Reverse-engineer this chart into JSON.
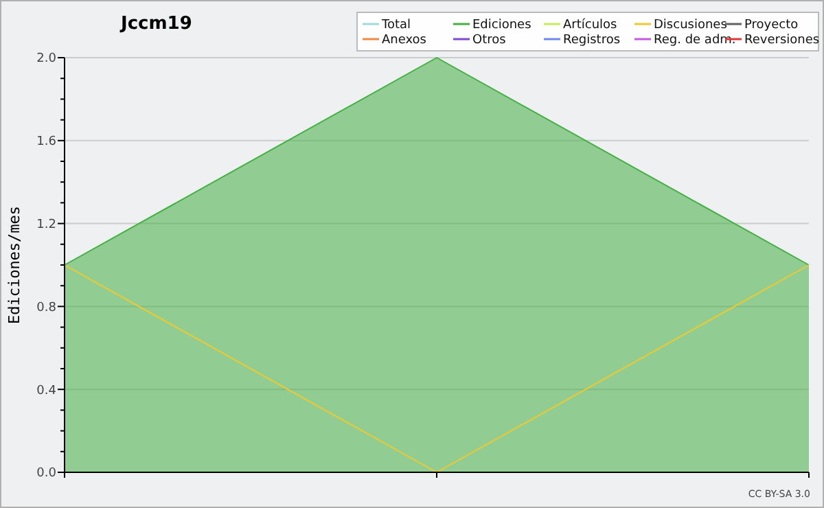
{
  "chart_data": {
    "type": "line",
    "title": "Jccm19",
    "ylabel": "Ediciones/mes",
    "categories": [
      null,
      null,
      null
    ],
    "series": [
      {
        "name": "Total",
        "color": "#a0dcdc",
        "values": [
          null,
          null,
          null
        ]
      },
      {
        "name": "Ediciones",
        "type": "area",
        "color": "#44b044",
        "values": [
          1,
          2,
          1
        ]
      },
      {
        "name": "Artículos",
        "color": "#c4ec5c",
        "values": [
          null,
          null,
          null
        ]
      },
      {
        "name": "Discusiones",
        "color": "#f0c830",
        "values": [
          1,
          0,
          1
        ]
      },
      {
        "name": "Proyecto",
        "color": "#606060",
        "values": [
          null,
          null,
          null
        ]
      },
      {
        "name": "Anexos",
        "color": "#f08848",
        "values": [
          null,
          null,
          null
        ]
      },
      {
        "name": "Otros",
        "color": "#8048d0",
        "values": [
          null,
          null,
          null
        ]
      },
      {
        "name": "Registros",
        "color": "#7088f0",
        "values": [
          null,
          null,
          null
        ]
      },
      {
        "name": "Reg. de adm.",
        "color": "#c858e0",
        "values": [
          null,
          null,
          null
        ]
      },
      {
        "name": "Reversiones",
        "color": "#e03838",
        "values": [
          null,
          null,
          null
        ]
      }
    ],
    "ylim": [
      0,
      2
    ],
    "yticks": [
      {
        "value": 0,
        "label": "0.0"
      },
      {
        "value": 0.1,
        "label": null
      },
      {
        "value": 0.2,
        "label": null
      },
      {
        "value": 0.3,
        "label": null
      },
      {
        "value": 0.4,
        "label": "0.4"
      },
      {
        "value": 0.5,
        "label": null
      },
      {
        "value": 0.6,
        "label": null
      },
      {
        "value": 0.7,
        "label": null
      },
      {
        "value": 0.8,
        "label": "0.8"
      },
      {
        "value": 0.9,
        "label": null
      },
      {
        "value": 1,
        "label": null
      },
      {
        "value": 1.1,
        "label": null
      },
      {
        "value": 1.2,
        "label": "1.2"
      },
      {
        "value": 1.3,
        "label": null
      },
      {
        "value": 1.4,
        "label": null
      },
      {
        "value": 1.5,
        "label": null
      },
      {
        "value": 1.6,
        "label": "1.6"
      },
      {
        "value": 1.7,
        "label": null
      },
      {
        "value": 1.8,
        "label": null
      },
      {
        "value": 1.9,
        "label": null
      },
      {
        "value": 2,
        "label": "2.0"
      }
    ],
    "grid": "y",
    "legend": "top right",
    "annotations": [
      "CC BY-SA 3.0"
    ]
  }
}
